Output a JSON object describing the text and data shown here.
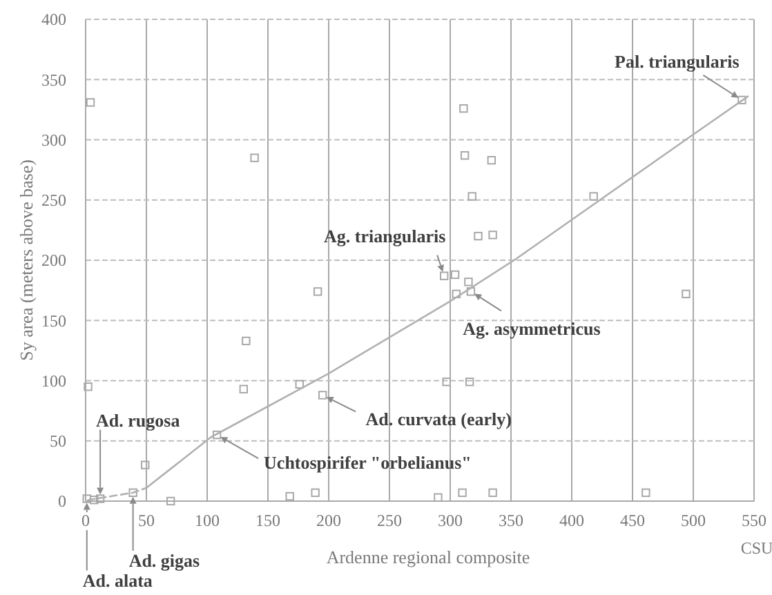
{
  "chart_data": {
    "type": "scatter",
    "xlabel": "Ardenne regional composite",
    "ylabel": "Sy area (meters above base)",
    "xlim": [
      0,
      550
    ],
    "ylim": [
      0,
      400
    ],
    "xticks": [
      0,
      50,
      100,
      150,
      200,
      250,
      300,
      350,
      400,
      450,
      500,
      550
    ],
    "yticks": [
      0,
      50,
      100,
      150,
      200,
      250,
      300,
      350,
      400
    ],
    "grid": true,
    "series": [
      {
        "color": "#a8a8a8",
        "marker": "square",
        "x": [
          4,
          139,
          191,
          132,
          2,
          130,
          176,
          195,
          49,
          108,
          39,
          7,
          12,
          1,
          70,
          168,
          189,
          290,
          310,
          335,
          461,
          297,
          316,
          305,
          317,
          315,
          494,
          311,
          312,
          334,
          318,
          323,
          335,
          295,
          304,
          418,
          540
        ],
        "values": [
          331,
          285,
          174,
          133,
          95,
          93,
          97,
          88,
          30,
          55,
          7,
          1,
          2,
          2,
          0,
          4,
          7,
          3,
          7,
          7,
          7,
          99,
          99,
          172,
          174,
          182,
          172,
          326,
          287,
          283,
          253,
          220,
          221,
          187,
          188,
          253,
          333
        ]
      },
      {
        "type": "line",
        "color": "#b0b0b0",
        "line_style": "dashed",
        "x": [
          2,
          39,
          50
        ],
        "values": [
          1,
          7,
          11
        ]
      },
      {
        "type": "line",
        "color": "#b0b0b0",
        "line_style": "solid",
        "x": [
          50,
          103,
          200,
          300,
          354,
          498,
          545
        ],
        "values": [
          11,
          53,
          106,
          166,
          201,
          303,
          336
        ]
      }
    ],
    "annotations": [
      {
        "text": "Pal. triangularis",
        "x": 540,
        "y": 333
      },
      {
        "text": "Ag. triangularis",
        "x": 295,
        "y": 187
      },
      {
        "text": "Ag. asymmetricus",
        "x": 317,
        "y": 174
      },
      {
        "text": "Ad. curvata (early)",
        "x": 195,
        "y": 88
      },
      {
        "text": "Uchtospirifer \"orbelianus\"",
        "x": 108,
        "y": 55
      },
      {
        "text": "Ad. rugosa",
        "x": 12,
        "y": 2
      },
      {
        "text": "Ad. gigas",
        "x": 39,
        "y": 7
      },
      {
        "text": "Ad. alata",
        "x": 1,
        "y": 2
      },
      "CSU"
    ]
  }
}
